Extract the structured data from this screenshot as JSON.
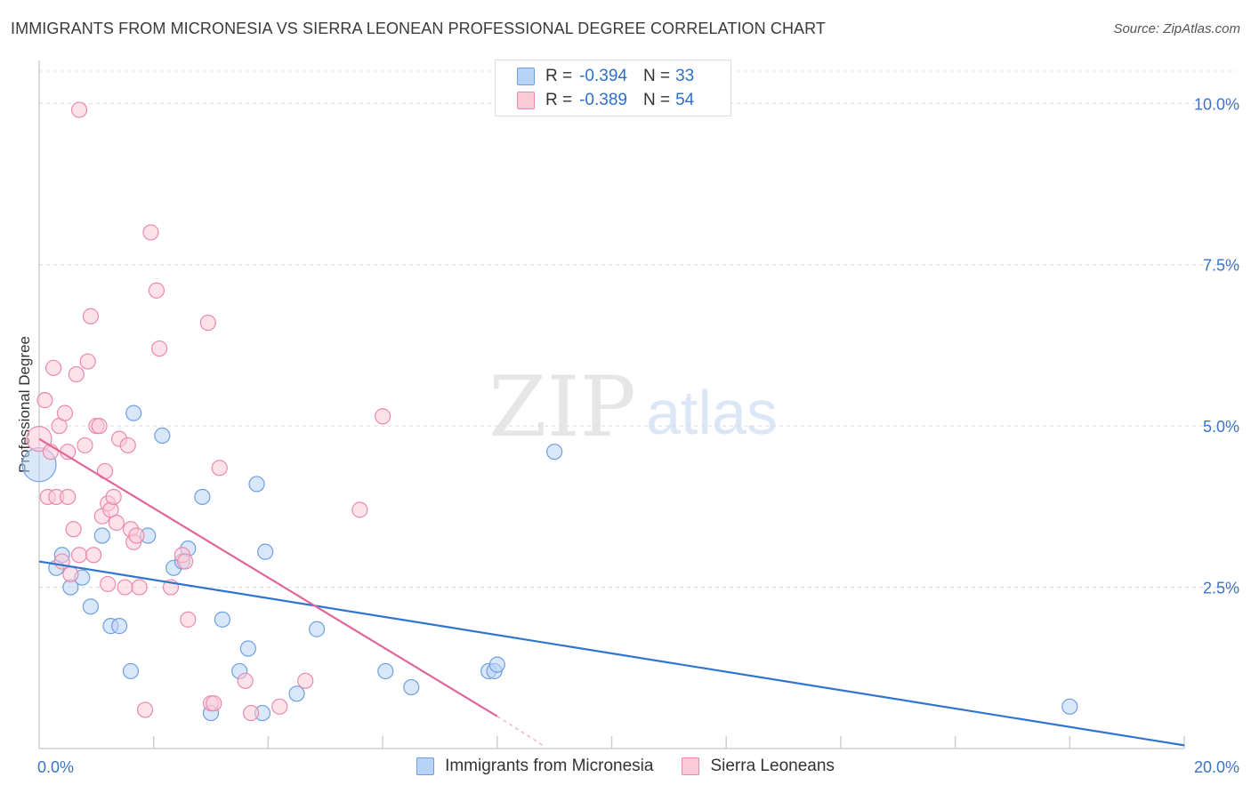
{
  "header": {
    "title": "IMMIGRANTS FROM MICRONESIA VS SIERRA LEONEAN PROFESSIONAL DEGREE CORRELATION CHART",
    "source": "Source: ZipAtlas.com"
  },
  "watermark": {
    "zip": "ZIP",
    "atlas": "atlas"
  },
  "legend_top": [
    {
      "r_label": "R =",
      "r_value": "-0.394",
      "n_label": "N =",
      "n_value": "33",
      "color": "#a8c8f5",
      "border": "#6f9fe0"
    },
    {
      "r_label": "R =",
      "r_value": "-0.389",
      "n_label": "N =",
      "n_value": "54",
      "color": "#f9c0d3",
      "border": "#ea8aab"
    }
  ],
  "legend_bottom": [
    {
      "label": "Immigrants from Micronesia",
      "color": "#b9d3f7",
      "border": "#6f9fe0"
    },
    {
      "label": "Sierra Leoneans",
      "color": "#fbcad9",
      "border": "#ea8aab"
    }
  ],
  "chart_data": {
    "type": "scatter",
    "title": "IMMIGRANTS FROM MICRONESIA VS SIERRA LEONEAN PROFESSIONAL DEGREE CORRELATION CHART",
    "xlabel": "",
    "ylabel": "Professional Degree",
    "xlim": [
      0,
      20
    ],
    "ylim": [
      0,
      10.5
    ],
    "x_tick_labels": [
      {
        "value": 0,
        "label": "0.0%"
      },
      {
        "value": 20,
        "label": "20.0%"
      }
    ],
    "x_minor_ticks": [
      2,
      4,
      6,
      8,
      10,
      12,
      14,
      16,
      18,
      20
    ],
    "y_ticks": [
      {
        "value": 2.5,
        "label": "2.5%"
      },
      {
        "value": 5.0,
        "label": "5.0%"
      },
      {
        "value": 7.5,
        "label": "7.5%"
      },
      {
        "value": 10.0,
        "label": "10.0%"
      }
    ],
    "grid": true,
    "legend_position": "top-center",
    "series": [
      {
        "name": "Immigrants from Micronesia",
        "color": "#6f9fe0",
        "fill": "#b9d3f7",
        "line_color": "#2f74d0",
        "trend": {
          "x": [
            0,
            20
          ],
          "y": [
            2.9,
            0.05
          ],
          "dashed_to": null
        },
        "points": [
          [
            0.0,
            4.4
          ],
          [
            0.3,
            2.8
          ],
          [
            0.4,
            3.0
          ],
          [
            0.55,
            2.5
          ],
          [
            0.75,
            2.65
          ],
          [
            0.9,
            2.2
          ],
          [
            1.1,
            3.3
          ],
          [
            1.25,
            1.9
          ],
          [
            1.4,
            1.9
          ],
          [
            1.6,
            1.2
          ],
          [
            1.65,
            5.2
          ],
          [
            1.9,
            3.3
          ],
          [
            2.15,
            4.85
          ],
          [
            2.35,
            2.8
          ],
          [
            2.5,
            2.9
          ],
          [
            2.6,
            3.1
          ],
          [
            2.85,
            3.9
          ],
          [
            3.0,
            0.55
          ],
          [
            3.2,
            2.0
          ],
          [
            3.5,
            1.2
          ],
          [
            3.65,
            1.55
          ],
          [
            3.8,
            4.1
          ],
          [
            3.9,
            0.55
          ],
          [
            3.95,
            3.05
          ],
          [
            4.5,
            0.85
          ],
          [
            4.85,
            1.85
          ],
          [
            6.05,
            1.2
          ],
          [
            6.5,
            0.95
          ],
          [
            7.85,
            1.2
          ],
          [
            7.95,
            1.2
          ],
          [
            8.0,
            1.3
          ],
          [
            9.0,
            4.6
          ],
          [
            18.0,
            0.65
          ]
        ]
      },
      {
        "name": "Sierra Leoneans",
        "color": "#ea8aab",
        "fill": "#fbcad9",
        "line_color": "#e0679a",
        "trend": {
          "x": [
            0,
            8.0
          ],
          "y": [
            4.8,
            0.5
          ],
          "dashed_to": [
            8.8,
            0.05
          ]
        },
        "points": [
          [
            0.0,
            4.8
          ],
          [
            0.1,
            5.4
          ],
          [
            0.15,
            3.9
          ],
          [
            0.2,
            4.6
          ],
          [
            0.25,
            5.9
          ],
          [
            0.3,
            3.9
          ],
          [
            0.35,
            5.0
          ],
          [
            0.4,
            2.9
          ],
          [
            0.45,
            5.2
          ],
          [
            0.5,
            4.6
          ],
          [
            0.5,
            3.9
          ],
          [
            0.55,
            2.7
          ],
          [
            0.6,
            3.4
          ],
          [
            0.65,
            5.8
          ],
          [
            0.7,
            3.0
          ],
          [
            0.7,
            9.9
          ],
          [
            0.8,
            4.7
          ],
          [
            0.85,
            6.0
          ],
          [
            0.9,
            6.7
          ],
          [
            0.95,
            3.0
          ],
          [
            1.0,
            5.0
          ],
          [
            1.05,
            5.0
          ],
          [
            1.1,
            3.6
          ],
          [
            1.15,
            4.3
          ],
          [
            1.2,
            3.8
          ],
          [
            1.25,
            3.7
          ],
          [
            1.3,
            3.9
          ],
          [
            1.35,
            3.5
          ],
          [
            1.4,
            4.8
          ],
          [
            1.5,
            2.5
          ],
          [
            1.55,
            4.7
          ],
          [
            1.6,
            3.4
          ],
          [
            1.65,
            3.2
          ],
          [
            1.7,
            3.3
          ],
          [
            1.75,
            2.5
          ],
          [
            1.85,
            0.6
          ],
          [
            1.95,
            8.0
          ],
          [
            2.05,
            7.1
          ],
          [
            2.1,
            6.2
          ],
          [
            2.3,
            2.5
          ],
          [
            2.5,
            3.0
          ],
          [
            2.55,
            2.9
          ],
          [
            2.6,
            2.0
          ],
          [
            2.95,
            6.6
          ],
          [
            3.0,
            0.7
          ],
          [
            3.05,
            0.7
          ],
          [
            3.15,
            4.35
          ],
          [
            3.6,
            1.05
          ],
          [
            3.7,
            0.55
          ],
          [
            4.2,
            0.65
          ],
          [
            4.65,
            1.05
          ],
          [
            5.6,
            3.7
          ],
          [
            6.0,
            5.15
          ],
          [
            1.2,
            2.55
          ]
        ]
      }
    ]
  }
}
